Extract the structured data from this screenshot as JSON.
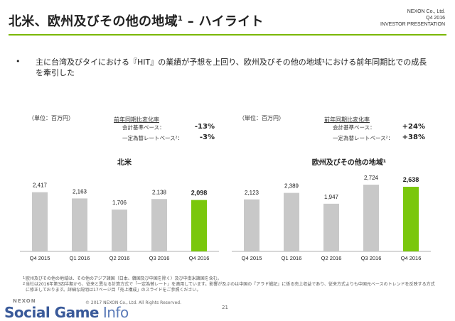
{
  "header": {
    "title": "北米、欧州及びその他の地域",
    "title_sup": "1",
    "title_suffix": " – ハイライト",
    "company": "NEXON Co., Ltd.",
    "period": "Q4 2016",
    "doc": "INVESTOR PRESENTATION"
  },
  "bullet": {
    "mark": "•",
    "text": "主に台湾及びタイにおける『HIT』の業績が予想を上回り、欧州及びその他の地域¹における前年同期比での成長を牽引した"
  },
  "left_panel": {
    "unit": "（単位：百万円）",
    "yoy_title": "前年同期比変化率",
    "yoy_rows": [
      {
        "label": "会計基準ベース：",
        "value": "-13%"
      },
      {
        "label": "一定為替レートベース²：",
        "value": "-3%"
      }
    ]
  },
  "right_panel": {
    "unit": "（単位：百万円）",
    "yoy_title": "前年同期比変化率",
    "yoy_rows": [
      {
        "label": "会計基準ベース：",
        "value": "+24%"
      },
      {
        "label": "一定為替レートベース²：",
        "value": "+38%"
      }
    ]
  },
  "colors": {
    "accent": "#7ab800",
    "bar": "#c8c8c8",
    "highlight": "#7ac70c"
  },
  "chart_data": [
    {
      "type": "bar",
      "title": "北米",
      "categories": [
        "Q4 2015",
        "Q1 2016",
        "Q2 2016",
        "Q3 2016",
        "Q4 2016"
      ],
      "values": [
        2417,
        2163,
        1706,
        2138,
        2098
      ],
      "labels": [
        "2,417",
        "2,163",
        "1,706",
        "2,138",
        "2,098"
      ],
      "ylim": [
        0,
        2900
      ],
      "highlight_index": 4,
      "grid": false
    },
    {
      "type": "bar",
      "title": "欧州及びその他の地域¹",
      "categories": [
        "Q4 2015",
        "Q1 2016",
        "Q2 2016",
        "Q3 2016",
        "Q4 2016"
      ],
      "values": [
        2123,
        2389,
        1947,
        2724,
        2638
      ],
      "labels": [
        "2,123",
        "2,389",
        "1,947",
        "2,724",
        "2,638"
      ],
      "ylim": [
        0,
        2900
      ],
      "highlight_index": 4,
      "grid": false
    }
  ],
  "footnotes": [
    {
      "num": "1",
      "text": "欧州及びその他の地域は、その他のアジア諸国（日本、韓国及び中国を除く）及び中南米諸国を含む。"
    },
    {
      "num": "2",
      "text": "当社は2016年第3四半期から、従来と異なる計算方式で「一定為替レート」を適用しています。影響が及ぶのは中国の『アラド戦記』に係る売上収益であり、従来方式よりも中国元ベースのトレンドを反映する方式に修正しております。詳細な説明は17ページ目「売上構成」のスライドをご参照ください。"
    }
  ],
  "footer": {
    "copyright": "© 2017 NEXON Co., Ltd. All Rights Reserved.",
    "page": "21",
    "nexon": "NEXON",
    "watermark_a": "Social Game",
    "watermark_b": " Info"
  }
}
